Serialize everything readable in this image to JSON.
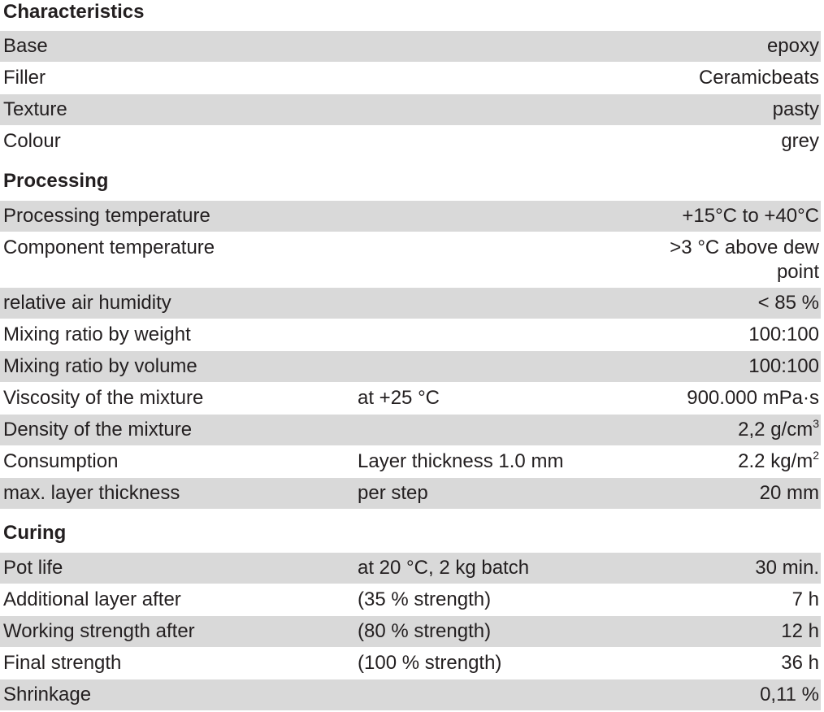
{
  "sections": [
    {
      "title": "Characteristics",
      "rows": [
        {
          "label": "Base",
          "cond": "",
          "value": "epoxy",
          "sup": ""
        },
        {
          "label": "Filler",
          "cond": "",
          "value": "Ceramicbeats",
          "sup": ""
        },
        {
          "label": "Texture",
          "cond": "",
          "value": "pasty",
          "sup": ""
        },
        {
          "label": "Colour",
          "cond": "",
          "value": "grey",
          "sup": ""
        }
      ]
    },
    {
      "title": "Processing",
      "rows": [
        {
          "label": "Processing temperature",
          "cond": "",
          "value": "+15°C to +40°C",
          "sup": ""
        },
        {
          "label": "Component temperature",
          "cond": "",
          "value": ">3 °C above dew point",
          "sup": ""
        },
        {
          "label": "relative air humidity",
          "cond": "",
          "value": "< 85 %",
          "sup": ""
        },
        {
          "label": "Mixing ratio by weight",
          "cond": "",
          "value": "100:100",
          "sup": ""
        },
        {
          "label": "Mixing ratio by volume",
          "cond": "",
          "value": "100:100",
          "sup": ""
        },
        {
          "label": "Viscosity of the mixture",
          "cond": "at +25 °C",
          "value": "900.000 mPa·s",
          "sup": ""
        },
        {
          "label": "Density of the mixture",
          "cond": "",
          "value": "2,2 g/cm",
          "sup": "3"
        },
        {
          "label": "Consumption",
          "cond": "Layer thickness 1.0 mm",
          "value": "2.2 kg/m",
          "sup": "2"
        },
        {
          "label": "max. layer thickness",
          "cond": "per step",
          "value": "20 mm",
          "sup": ""
        }
      ]
    },
    {
      "title": "Curing",
      "rows": [
        {
          "label": "Pot life",
          "cond": "at 20 °C, 2 kg batch",
          "value": "30 min.",
          "sup": ""
        },
        {
          "label": "Additional layer after",
          "cond": "(35 % strength)",
          "value": "7 h",
          "sup": ""
        },
        {
          "label": "Working strength after",
          "cond": "(80 % strength)",
          "value": "12 h",
          "sup": ""
        },
        {
          "label": "Final strength",
          "cond": "(100 % strength)",
          "value": "36 h",
          "sup": ""
        },
        {
          "label": "Shrinkage",
          "cond": "",
          "value": "0,11 %",
          "sup": ""
        }
      ]
    }
  ],
  "colors": {
    "row_shade": "#d9d9d9",
    "text": "#231f20"
  }
}
